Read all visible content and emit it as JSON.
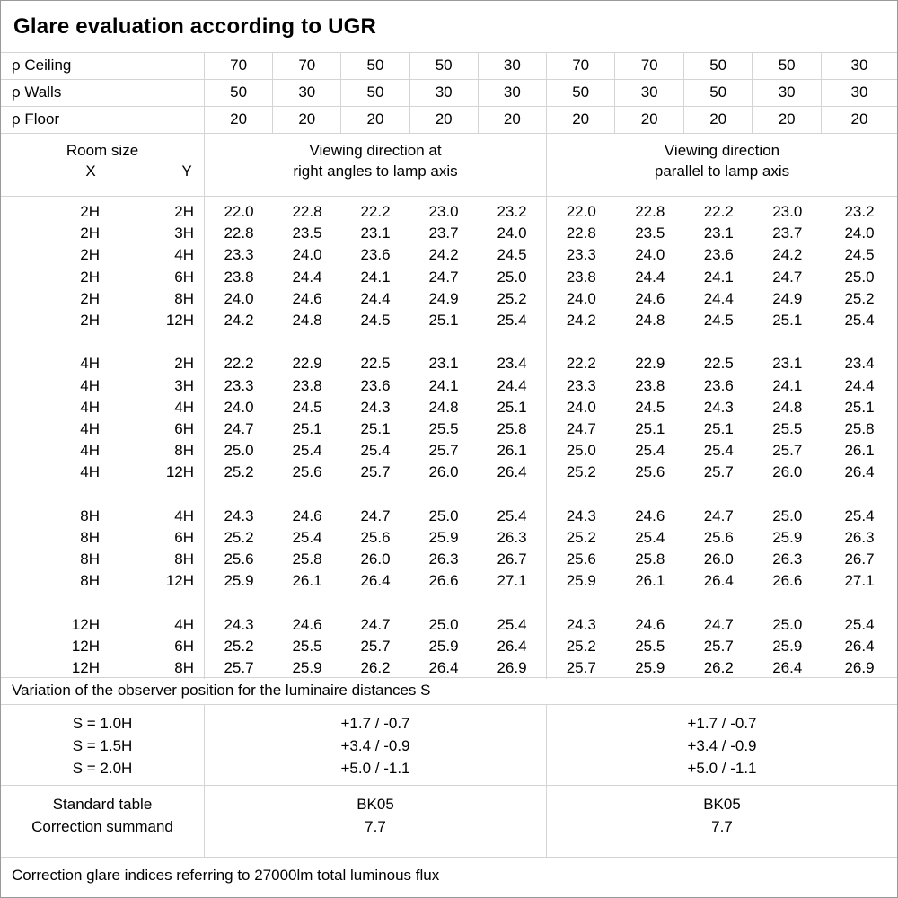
{
  "title": "Glare evaluation according to UGR",
  "reflectances": {
    "rows": [
      {
        "label": "ρ Ceiling",
        "values": [
          "70",
          "70",
          "50",
          "50",
          "30",
          "70",
          "70",
          "50",
          "50",
          "30"
        ]
      },
      {
        "label": "ρ Walls",
        "values": [
          "50",
          "30",
          "50",
          "30",
          "30",
          "50",
          "30",
          "50",
          "30",
          "30"
        ]
      },
      {
        "label": "ρ Floor",
        "values": [
          "20",
          "20",
          "20",
          "20",
          "20",
          "20",
          "20",
          "20",
          "20",
          "20"
        ]
      }
    ]
  },
  "room_header": {
    "room_size": "Room size",
    "x": "X",
    "y": "Y",
    "right_angles_line1": "Viewing direction at",
    "right_angles_line2": "right angles to lamp axis",
    "parallel_line1": "Viewing direction",
    "parallel_line2": "parallel to lamp axis"
  },
  "ugr_table": {
    "blocks": [
      {
        "rows": [
          {
            "x": "2H",
            "y": "2H",
            "left": [
              "22.0",
              "22.8",
              "22.2",
              "23.0",
              "23.2"
            ],
            "right": [
              "22.0",
              "22.8",
              "22.2",
              "23.0",
              "23.2"
            ]
          },
          {
            "x": "2H",
            "y": "3H",
            "left": [
              "22.8",
              "23.5",
              "23.1",
              "23.7",
              "24.0"
            ],
            "right": [
              "22.8",
              "23.5",
              "23.1",
              "23.7",
              "24.0"
            ]
          },
          {
            "x": "2H",
            "y": "4H",
            "left": [
              "23.3",
              "24.0",
              "23.6",
              "24.2",
              "24.5"
            ],
            "right": [
              "23.3",
              "24.0",
              "23.6",
              "24.2",
              "24.5"
            ]
          },
          {
            "x": "2H",
            "y": "6H",
            "left": [
              "23.8",
              "24.4",
              "24.1",
              "24.7",
              "25.0"
            ],
            "right": [
              "23.8",
              "24.4",
              "24.1",
              "24.7",
              "25.0"
            ]
          },
          {
            "x": "2H",
            "y": "8H",
            "left": [
              "24.0",
              "24.6",
              "24.4",
              "24.9",
              "25.2"
            ],
            "right": [
              "24.0",
              "24.6",
              "24.4",
              "24.9",
              "25.2"
            ]
          },
          {
            "x": "2H",
            "y": "12H",
            "left": [
              "24.2",
              "24.8",
              "24.5",
              "25.1",
              "25.4"
            ],
            "right": [
              "24.2",
              "24.8",
              "24.5",
              "25.1",
              "25.4"
            ]
          }
        ]
      },
      {
        "rows": [
          {
            "x": "4H",
            "y": "2H",
            "left": [
              "22.2",
              "22.9",
              "22.5",
              "23.1",
              "23.4"
            ],
            "right": [
              "22.2",
              "22.9",
              "22.5",
              "23.1",
              "23.4"
            ]
          },
          {
            "x": "4H",
            "y": "3H",
            "left": [
              "23.3",
              "23.8",
              "23.6",
              "24.1",
              "24.4"
            ],
            "right": [
              "23.3",
              "23.8",
              "23.6",
              "24.1",
              "24.4"
            ]
          },
          {
            "x": "4H",
            "y": "4H",
            "left": [
              "24.0",
              "24.5",
              "24.3",
              "24.8",
              "25.1"
            ],
            "right": [
              "24.0",
              "24.5",
              "24.3",
              "24.8",
              "25.1"
            ]
          },
          {
            "x": "4H",
            "y": "6H",
            "left": [
              "24.7",
              "25.1",
              "25.1",
              "25.5",
              "25.8"
            ],
            "right": [
              "24.7",
              "25.1",
              "25.1",
              "25.5",
              "25.8"
            ]
          },
          {
            "x": "4H",
            "y": "8H",
            "left": [
              "25.0",
              "25.4",
              "25.4",
              "25.7",
              "26.1"
            ],
            "right": [
              "25.0",
              "25.4",
              "25.4",
              "25.7",
              "26.1"
            ]
          },
          {
            "x": "4H",
            "y": "12H",
            "left": [
              "25.2",
              "25.6",
              "25.7",
              "26.0",
              "26.4"
            ],
            "right": [
              "25.2",
              "25.6",
              "25.7",
              "26.0",
              "26.4"
            ]
          }
        ]
      },
      {
        "rows": [
          {
            "x": "8H",
            "y": "4H",
            "left": [
              "24.3",
              "24.6",
              "24.7",
              "25.0",
              "25.4"
            ],
            "right": [
              "24.3",
              "24.6",
              "24.7",
              "25.0",
              "25.4"
            ]
          },
          {
            "x": "8H",
            "y": "6H",
            "left": [
              "25.2",
              "25.4",
              "25.6",
              "25.9",
              "26.3"
            ],
            "right": [
              "25.2",
              "25.4",
              "25.6",
              "25.9",
              "26.3"
            ]
          },
          {
            "x": "8H",
            "y": "8H",
            "left": [
              "25.6",
              "25.8",
              "26.0",
              "26.3",
              "26.7"
            ],
            "right": [
              "25.6",
              "25.8",
              "26.0",
              "26.3",
              "26.7"
            ]
          },
          {
            "x": "8H",
            "y": "12H",
            "left": [
              "25.9",
              "26.1",
              "26.4",
              "26.6",
              "27.1"
            ],
            "right": [
              "25.9",
              "26.1",
              "26.4",
              "26.6",
              "27.1"
            ]
          }
        ]
      },
      {
        "rows": [
          {
            "x": "12H",
            "y": "4H",
            "left": [
              "24.3",
              "24.6",
              "24.7",
              "25.0",
              "25.4"
            ],
            "right": [
              "24.3",
              "24.6",
              "24.7",
              "25.0",
              "25.4"
            ]
          },
          {
            "x": "12H",
            "y": "6H",
            "left": [
              "25.2",
              "25.5",
              "25.7",
              "25.9",
              "26.4"
            ],
            "right": [
              "25.2",
              "25.5",
              "25.7",
              "25.9",
              "26.4"
            ]
          },
          {
            "x": "12H",
            "y": "8H",
            "left": [
              "25.7",
              "25.9",
              "26.2",
              "26.4",
              "26.9"
            ],
            "right": [
              "25.7",
              "25.9",
              "26.2",
              "26.4",
              "26.9"
            ]
          }
        ]
      }
    ]
  },
  "footer": {
    "variation_note": "Variation of the observer position for the luminaire distances S",
    "s_labels": [
      "S = 1.0H",
      "S = 1.5H",
      "S = 2.0H"
    ],
    "s_values_left": [
      "+1.7 / -0.7",
      "+3.4 / -0.9",
      "+5.0 / -1.1"
    ],
    "s_values_right": [
      "+1.7 / -0.7",
      "+3.4 / -0.9",
      "+5.0 / -1.1"
    ],
    "standard_table_label": "Standard table",
    "correction_summand_label": "Correction summand",
    "standard_table_value_left": "BK05",
    "correction_summand_value_left": "7.7",
    "standard_table_value_right": "BK05",
    "correction_summand_value_right": "7.7",
    "flux_note": "Correction glare indices referring to 27000lm total luminous flux"
  }
}
